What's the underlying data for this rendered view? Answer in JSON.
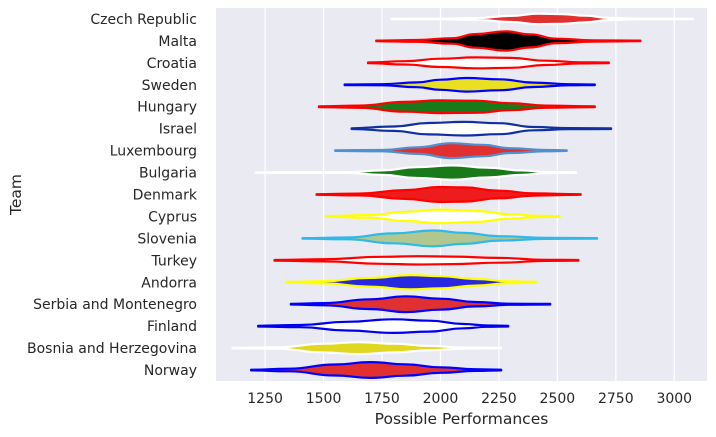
{
  "chart_data": {
    "type": "violin",
    "orientation": "horizontal",
    "xlabel": "Possible Performances",
    "ylabel": "Team",
    "xlim": [
      1040,
      3140
    ],
    "xticks": [
      1250,
      1500,
      1750,
      2000,
      2250,
      2500,
      2750,
      3000
    ],
    "grid": true,
    "background": "#eaeaf2",
    "teams": [
      {
        "name": "Czech Republic",
        "min": 1790,
        "max": 3080,
        "fill": "#e03030",
        "edge": "#ffffff",
        "profile": [
          [
            1790,
            0.02
          ],
          [
            2000,
            0.03
          ],
          [
            2150,
            0.08
          ],
          [
            2300,
            0.28
          ],
          [
            2420,
            0.48
          ],
          [
            2520,
            0.44
          ],
          [
            2620,
            0.3
          ],
          [
            2720,
            0.1
          ],
          [
            2850,
            0.03
          ],
          [
            3080,
            0.02
          ]
        ]
      },
      {
        "name": "Malta",
        "min": 1725,
        "max": 2855,
        "fill": "#000000",
        "edge": "#ff0000",
        "profile": [
          [
            1725,
            0.03
          ],
          [
            1900,
            0.08
          ],
          [
            2050,
            0.25
          ],
          [
            2150,
            0.62
          ],
          [
            2280,
            0.88
          ],
          [
            2380,
            0.6
          ],
          [
            2500,
            0.2
          ],
          [
            2650,
            0.06
          ],
          [
            2855,
            0.03
          ]
        ]
      },
      {
        "name": "Croatia",
        "min": 1690,
        "max": 2720,
        "fill": "#ffffff",
        "edge": "#ff0000",
        "profile": [
          [
            1690,
            0.03
          ],
          [
            1850,
            0.15
          ],
          [
            2000,
            0.38
          ],
          [
            2150,
            0.5
          ],
          [
            2300,
            0.45
          ],
          [
            2450,
            0.2
          ],
          [
            2600,
            0.05
          ],
          [
            2720,
            0.03
          ]
        ]
      },
      {
        "name": "Sweden",
        "min": 1590,
        "max": 2660,
        "fill": "#e8e020",
        "edge": "#0000ff",
        "profile": [
          [
            1590,
            0.03
          ],
          [
            1750,
            0.05
          ],
          [
            1900,
            0.22
          ],
          [
            2000,
            0.46
          ],
          [
            2110,
            0.62
          ],
          [
            2250,
            0.5
          ],
          [
            2400,
            0.2
          ],
          [
            2550,
            0.05
          ],
          [
            2660,
            0.03
          ]
        ]
      },
      {
        "name": "Hungary",
        "min": 1480,
        "max": 2660,
        "fill": "#1a7a1a",
        "edge": "#ff0000",
        "profile": [
          [
            1480,
            0.03
          ],
          [
            1650,
            0.1
          ],
          [
            1850,
            0.45
          ],
          [
            2000,
            0.58
          ],
          [
            2150,
            0.55
          ],
          [
            2300,
            0.32
          ],
          [
            2450,
            0.1
          ],
          [
            2660,
            0.03
          ]
        ]
      },
      {
        "name": "Israel",
        "min": 1620,
        "max": 2730,
        "fill": "#ffffff",
        "edge": "#1030a0",
        "profile": [
          [
            1620,
            0.03
          ],
          [
            1800,
            0.2
          ],
          [
            1950,
            0.52
          ],
          [
            2100,
            0.62
          ],
          [
            2250,
            0.5
          ],
          [
            2400,
            0.15
          ],
          [
            2550,
            0.05
          ],
          [
            2730,
            0.03
          ]
        ]
      },
      {
        "name": "Luxembourg",
        "min": 1550,
        "max": 2540,
        "fill": "#e03030",
        "edge": "#5090d0",
        "profile": [
          [
            1550,
            0.03
          ],
          [
            1750,
            0.06
          ],
          [
            1900,
            0.3
          ],
          [
            2050,
            0.68
          ],
          [
            2180,
            0.52
          ],
          [
            2300,
            0.22
          ],
          [
            2450,
            0.06
          ],
          [
            2540,
            0.03
          ]
        ]
      },
      {
        "name": "Bulgaria",
        "min": 1210,
        "max": 2580,
        "fill": "#1a7a1a",
        "edge": "#ffffff",
        "profile": [
          [
            1210,
            0.02
          ],
          [
            1600,
            0.03
          ],
          [
            1750,
            0.2
          ],
          [
            1900,
            0.5
          ],
          [
            2050,
            0.65
          ],
          [
            2200,
            0.45
          ],
          [
            2350,
            0.2
          ],
          [
            2450,
            0.05
          ],
          [
            2580,
            0.02
          ]
        ]
      },
      {
        "name": "Denmark",
        "min": 1470,
        "max": 2600,
        "fill": "#ee1c1c",
        "edge": "#ff0000",
        "profile": [
          [
            1470,
            0.03
          ],
          [
            1650,
            0.08
          ],
          [
            1850,
            0.4
          ],
          [
            2000,
            0.68
          ],
          [
            2100,
            0.65
          ],
          [
            2250,
            0.35
          ],
          [
            2400,
            0.1
          ],
          [
            2600,
            0.03
          ]
        ]
      },
      {
        "name": "Cyprus",
        "min": 1510,
        "max": 2510,
        "fill": "#ffffff",
        "edge": "#ffff00",
        "profile": [
          [
            1510,
            0.03
          ],
          [
            1700,
            0.12
          ],
          [
            1850,
            0.42
          ],
          [
            2000,
            0.62
          ],
          [
            2150,
            0.5
          ],
          [
            2300,
            0.2
          ],
          [
            2420,
            0.05
          ],
          [
            2510,
            0.03
          ]
        ]
      },
      {
        "name": "Slovenia",
        "min": 1410,
        "max": 2670,
        "fill": "#b0c890",
        "edge": "#30b8e8",
        "profile": [
          [
            1410,
            0.03
          ],
          [
            1600,
            0.08
          ],
          [
            1800,
            0.45
          ],
          [
            1970,
            0.72
          ],
          [
            2100,
            0.5
          ],
          [
            2250,
            0.2
          ],
          [
            2450,
            0.05
          ],
          [
            2670,
            0.03
          ]
        ]
      },
      {
        "name": "Turkey",
        "min": 1290,
        "max": 2590,
        "fill": "#ffffff",
        "edge": "#ff0000",
        "profile": [
          [
            1290,
            0.03
          ],
          [
            1500,
            0.1
          ],
          [
            1750,
            0.32
          ],
          [
            1900,
            0.38
          ],
          [
            2050,
            0.34
          ],
          [
            2250,
            0.22
          ],
          [
            2450,
            0.05
          ],
          [
            2590,
            0.03
          ]
        ]
      },
      {
        "name": "Andorra",
        "min": 1340,
        "max": 2410,
        "fill": "#2828e0",
        "edge": "#ffff00",
        "profile": [
          [
            1340,
            0.03
          ],
          [
            1500,
            0.1
          ],
          [
            1700,
            0.4
          ],
          [
            1870,
            0.65
          ],
          [
            2000,
            0.55
          ],
          [
            2150,
            0.3
          ],
          [
            2300,
            0.08
          ],
          [
            2410,
            0.03
          ]
        ]
      },
      {
        "name": "Serbia and Montenegro",
        "min": 1360,
        "max": 2470,
        "fill": "#e03030",
        "edge": "#0000ff",
        "profile": [
          [
            1360,
            0.03
          ],
          [
            1500,
            0.1
          ],
          [
            1700,
            0.45
          ],
          [
            1850,
            0.72
          ],
          [
            2000,
            0.5
          ],
          [
            2150,
            0.2
          ],
          [
            2300,
            0.05
          ],
          [
            2470,
            0.03
          ]
        ]
      },
      {
        "name": "Finland",
        "min": 1220,
        "max": 2290,
        "fill": "#ffffff",
        "edge": "#0000ee",
        "profile": [
          [
            1220,
            0.03
          ],
          [
            1400,
            0.1
          ],
          [
            1600,
            0.4
          ],
          [
            1800,
            0.62
          ],
          [
            1950,
            0.5
          ],
          [
            2100,
            0.2
          ],
          [
            2200,
            0.06
          ],
          [
            2290,
            0.03
          ]
        ]
      },
      {
        "name": "Bosnia and Herzegovina",
        "min": 1110,
        "max": 2260,
        "fill": "#e0d820",
        "edge": "#ffffff",
        "profile": [
          [
            1110,
            0.02
          ],
          [
            1300,
            0.06
          ],
          [
            1500,
            0.4
          ],
          [
            1650,
            0.55
          ],
          [
            1800,
            0.4
          ],
          [
            1950,
            0.2
          ],
          [
            2100,
            0.05
          ],
          [
            2260,
            0.02
          ]
        ]
      },
      {
        "name": "Norway",
        "min": 1190,
        "max": 2260,
        "fill": "#e03030",
        "edge": "#0000ff",
        "profile": [
          [
            1190,
            0.03
          ],
          [
            1350,
            0.12
          ],
          [
            1550,
            0.5
          ],
          [
            1700,
            0.72
          ],
          [
            1850,
            0.52
          ],
          [
            2000,
            0.25
          ],
          [
            2150,
            0.08
          ],
          [
            2260,
            0.03
          ]
        ]
      }
    ]
  }
}
